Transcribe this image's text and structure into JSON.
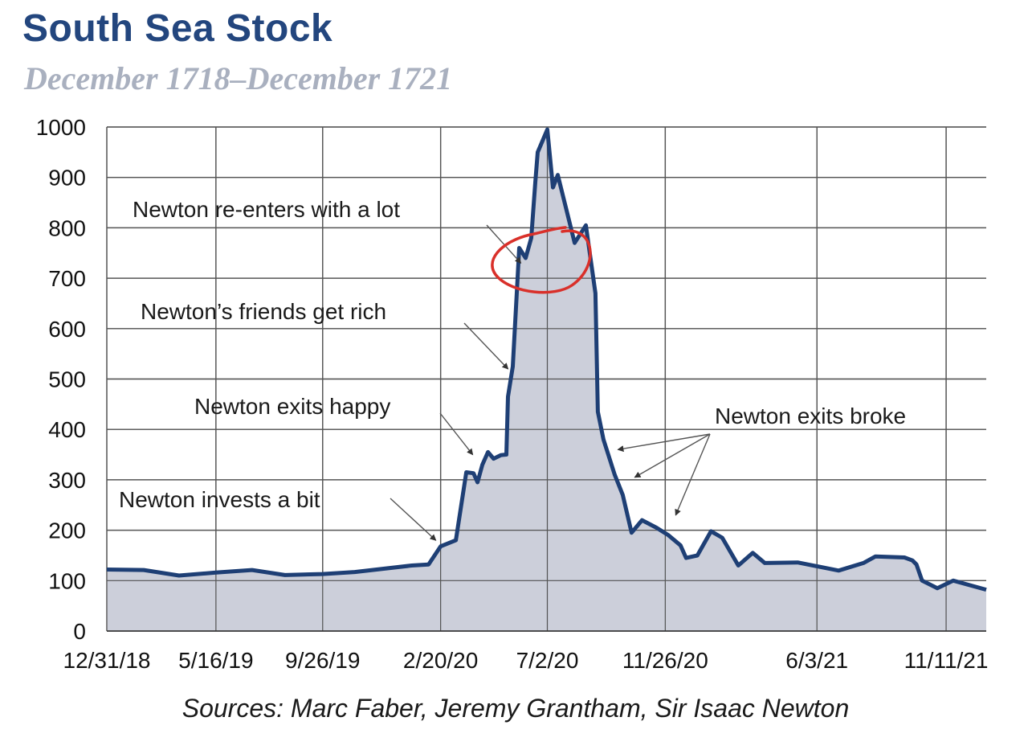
{
  "chart_data": {
    "type": "area",
    "title": "South Sea Stock",
    "subtitle": "December 1718–December 1721",
    "source": "Sources: Marc Faber, Jeremy Grantham, Sir Isaac Newton",
    "ylim": [
      0,
      1000
    ],
    "yticks": [
      0,
      100,
      200,
      300,
      400,
      500,
      600,
      700,
      800,
      900,
      1000
    ],
    "xlim": [
      "1718-12-31",
      "1721-12-31"
    ],
    "xticks": [
      {
        "label": "12/31/18",
        "date": "1718-12-31"
      },
      {
        "label": "5/16/19",
        "date": "1719-05-16"
      },
      {
        "label": "9/26/19",
        "date": "1719-09-26"
      },
      {
        "label": "2/20/20",
        "date": "1720-02-20"
      },
      {
        "label": "7/2/20",
        "date": "1720-07-02"
      },
      {
        "label": "11/26/20",
        "date": "1720-11-26"
      },
      {
        "label": "6/3/21",
        "date": "1721-06-03"
      },
      {
        "label": "11/11/21",
        "date": "1721-11-11"
      }
    ],
    "grid": true,
    "series": [
      {
        "points": [
          [
            "1718-12-31",
            122
          ],
          [
            "1719-02-15",
            121
          ],
          [
            "1719-03-31",
            110
          ],
          [
            "1719-05-16",
            116
          ],
          [
            "1719-06-30",
            121
          ],
          [
            "1719-08-10",
            111
          ],
          [
            "1719-09-26",
            113
          ],
          [
            "1719-11-05",
            117
          ],
          [
            "1720-01-15",
            130
          ],
          [
            "1720-02-05",
            132
          ],
          [
            "1720-02-20",
            168
          ],
          [
            "1720-03-10",
            180
          ],
          [
            "1720-03-23",
            315
          ],
          [
            "1720-04-01",
            313
          ],
          [
            "1720-04-06",
            295
          ],
          [
            "1720-04-12",
            330
          ],
          [
            "1720-04-19",
            355
          ],
          [
            "1720-04-26",
            342
          ],
          [
            "1720-05-05",
            349
          ],
          [
            "1720-05-12",
            350
          ],
          [
            "1720-05-14",
            465
          ],
          [
            "1720-05-20",
            525
          ],
          [
            "1720-05-28",
            760
          ],
          [
            "1720-06-05",
            740
          ],
          [
            "1720-06-12",
            780
          ],
          [
            "1720-06-17",
            890
          ],
          [
            "1720-06-20",
            950
          ],
          [
            "1720-07-02",
            995
          ],
          [
            "1720-07-09",
            880
          ],
          [
            "1720-07-15",
            905
          ],
          [
            "1720-07-22",
            860
          ],
          [
            "1720-08-05",
            770
          ],
          [
            "1720-08-19",
            805
          ],
          [
            "1720-08-31",
            670
          ],
          [
            "1720-09-03",
            435
          ],
          [
            "1720-09-10",
            380
          ],
          [
            "1720-09-24",
            310
          ],
          [
            "1720-10-04",
            270
          ],
          [
            "1720-10-15",
            195
          ],
          [
            "1720-10-28",
            220
          ],
          [
            "1720-11-15",
            205
          ],
          [
            "1720-11-30",
            190
          ],
          [
            "1720-12-15",
            170
          ],
          [
            "1720-12-22",
            145
          ],
          [
            "1721-01-05",
            150
          ],
          [
            "1721-01-22",
            198
          ],
          [
            "1721-02-05",
            185
          ],
          [
            "1721-02-25",
            130
          ],
          [
            "1721-03-15",
            155
          ],
          [
            "1721-03-30",
            135
          ],
          [
            "1721-05-10",
            136
          ],
          [
            "1721-06-30",
            120
          ],
          [
            "1721-07-31",
            135
          ],
          [
            "1721-08-15",
            148
          ],
          [
            "1721-09-20",
            146
          ],
          [
            "1721-09-30",
            140
          ],
          [
            "1721-10-05",
            132
          ],
          [
            "1721-10-12",
            100
          ],
          [
            "1721-10-31",
            85
          ],
          [
            "1721-11-20",
            100
          ],
          [
            "1721-12-31",
            82
          ]
        ]
      }
    ],
    "annotations": [
      {
        "text": "Newton re-enters with a lot",
        "date": "1720-06-05",
        "value": 730
      },
      {
        "text": "Newton’s friends get rich",
        "date": "1720-05-20",
        "value": 520
      },
      {
        "text": "Newton exits happy",
        "date": "1720-04-06",
        "value": 350
      },
      {
        "text": "Newton invests a bit",
        "date": "1720-02-20",
        "value": 180
      },
      {
        "text": "Newton exits broke",
        "targets": [
          {
            "date": "1720-09-24",
            "value": 360
          },
          {
            "date": "1720-10-15",
            "value": 305
          },
          {
            "date": "1720-12-05",
            "value": 230
          }
        ]
      }
    ],
    "colors": {
      "title": "#23467e",
      "subtitle": "#a9b0bf",
      "line": "#1e3f75",
      "fill": "#c6cad6",
      "highlight_circle": "#d9302a"
    }
  }
}
